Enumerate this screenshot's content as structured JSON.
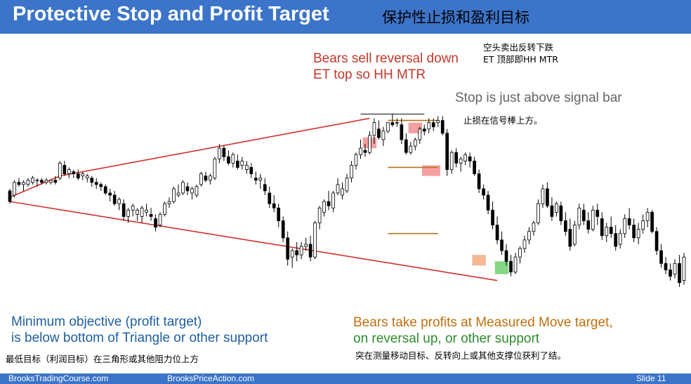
{
  "title": {
    "en": "Protective Stop and Profit Target",
    "cn": "保护性止损和盈利目标"
  },
  "annotations": {
    "bears_sell": {
      "line1": "Bears sell reversal down",
      "line2": "ET top so HH MTR"
    },
    "stop": "Stop is just above signal bar",
    "min_objective": {
      "line1": "Minimum objective (profit target)",
      "line2": "is below bottom of Triangle or other support"
    },
    "bears_profit": {
      "line1": "Bears take profits at Measured Move target,",
      "line2": "on reversal up, or other support"
    },
    "cn_top": {
      "line1": "空头卖出反转下跌",
      "line2": "ET 顶部即HH MTR"
    },
    "cn_stop": "止损在信号棒上方。",
    "cn_min": "最低目标（利润目标）在三角形或其他阻力位上方",
    "cn_profit": "突在测量移动目标、反转向上或其他支撑位获利了结。"
  },
  "footer": {
    "site1": "BrooksTradingCourse.com",
    "site2": "BrooksPriceAction.com",
    "slide": "Slide  11"
  },
  "colors": {
    "title_bar": "#3b74c9",
    "bear_bar": "#000000",
    "bull_bar": "#ffffff",
    "triangle_lines": "#d0312d",
    "level_lines": "#b8741a",
    "signal_highlight": "#f08080",
    "target_highlight": "#f0a070",
    "buy_highlight": "#5cc85c"
  },
  "chart_data": {
    "type": "candlestick",
    "title": "",
    "xlabel": "",
    "ylabel": "",
    "ylim": [
      0,
      100
    ],
    "candles": [
      [
        52,
        53,
        46,
        47
      ],
      [
        50,
        57,
        49,
        56
      ],
      [
        56,
        58,
        54,
        55
      ],
      [
        55,
        57,
        52,
        56
      ],
      [
        55,
        58,
        54,
        57
      ],
      [
        56,
        59,
        55,
        58
      ],
      [
        57,
        58,
        54,
        57
      ],
      [
        57,
        58,
        55,
        56
      ],
      [
        56,
        58,
        55,
        57
      ],
      [
        56,
        57,
        55,
        57
      ],
      [
        57,
        59,
        55,
        56
      ],
      [
        58,
        66,
        57,
        65
      ],
      [
        64,
        66,
        59,
        60
      ],
      [
        60,
        63,
        58,
        62
      ],
      [
        61,
        62,
        58,
        60
      ],
      [
        60,
        62,
        57,
        58
      ],
      [
        59,
        61,
        57,
        60
      ],
      [
        58,
        60,
        56,
        59
      ],
      [
        58,
        59,
        54,
        56
      ],
      [
        56,
        58,
        53,
        55
      ],
      [
        55,
        56,
        52,
        54
      ],
      [
        54,
        55,
        50,
        51
      ],
      [
        51,
        53,
        47,
        50
      ],
      [
        50,
        52,
        45,
        46
      ],
      [
        46,
        49,
        43,
        48
      ],
      [
        46,
        48,
        38,
        40
      ],
      [
        40,
        44,
        37,
        43
      ],
      [
        43,
        46,
        40,
        45
      ],
      [
        41,
        44,
        38,
        43
      ],
      [
        40,
        45,
        37,
        44
      ],
      [
        42,
        46,
        40,
        43
      ],
      [
        41,
        44,
        38,
        40
      ],
      [
        39,
        41,
        33,
        35
      ],
      [
        36,
        42,
        35,
        41
      ],
      [
        41,
        47,
        40,
        46
      ],
      [
        46,
        49,
        44,
        47
      ],
      [
        47,
        54,
        46,
        53
      ],
      [
        50,
        55,
        49,
        51
      ],
      [
        51,
        57,
        50,
        56
      ],
      [
        54,
        56,
        50,
        52
      ],
      [
        51,
        54,
        48,
        53
      ],
      [
        50,
        55,
        49,
        54
      ],
      [
        55,
        61,
        54,
        60
      ],
      [
        59,
        61,
        56,
        57
      ],
      [
        57,
        60,
        55,
        59
      ],
      [
        58,
        68,
        57,
        67
      ],
      [
        67,
        74,
        65,
        72
      ],
      [
        72,
        73,
        66,
        68
      ],
      [
        68,
        71,
        64,
        65
      ],
      [
        65,
        70,
        63,
        69
      ],
      [
        66,
        69,
        62,
        63
      ],
      [
        64,
        68,
        62,
        66
      ],
      [
        62,
        66,
        60,
        64
      ],
      [
        63,
        65,
        58,
        60
      ],
      [
        58,
        61,
        55,
        57
      ],
      [
        57,
        60,
        53,
        58
      ],
      [
        55,
        58,
        50,
        52
      ],
      [
        51,
        54,
        44,
        46
      ],
      [
        46,
        50,
        42,
        44
      ],
      [
        44,
        46,
        35,
        38
      ],
      [
        38,
        40,
        28,
        30
      ],
      [
        30,
        33,
        17,
        20
      ],
      [
        21,
        25,
        16,
        24
      ],
      [
        24,
        28,
        19,
        22
      ],
      [
        22,
        28,
        20,
        26
      ],
      [
        26,
        30,
        24,
        27
      ],
      [
        27,
        31,
        19,
        21
      ],
      [
        21,
        38,
        20,
        37
      ],
      [
        37,
        45,
        34,
        44
      ],
      [
        42,
        48,
        40,
        47
      ],
      [
        47,
        52,
        43,
        45
      ],
      [
        44,
        52,
        42,
        51
      ],
      [
        51,
        58,
        50,
        55
      ],
      [
        50,
        56,
        48,
        53
      ],
      [
        52,
        60,
        51,
        58
      ],
      [
        58,
        66,
        56,
        64
      ],
      [
        64,
        70,
        62,
        69
      ],
      [
        69,
        76,
        67,
        72
      ],
      [
        71,
        74,
        68,
        70
      ],
      [
        70,
        80,
        69,
        78
      ],
      [
        78,
        86,
        74,
        84
      ],
      [
        81,
        85,
        76,
        77
      ],
      [
        76,
        82,
        73,
        80
      ],
      [
        80,
        84,
        79,
        84
      ],
      [
        84,
        88,
        82,
        83
      ],
      [
        84,
        86,
        82,
        84
      ],
      [
        83,
        86,
        74,
        76
      ],
      [
        76,
        79,
        69,
        70
      ],
      [
        70,
        75,
        69,
        73
      ],
      [
        73,
        77,
        71,
        76
      ],
      [
        76,
        82,
        74,
        81
      ],
      [
        81,
        83,
        78,
        80
      ],
      [
        81,
        86,
        79,
        84
      ],
      [
        84,
        86,
        80,
        82
      ],
      [
        84,
        87,
        82,
        85
      ],
      [
        85,
        87,
        78,
        79
      ],
      [
        79,
        81,
        59,
        62
      ],
      [
        62,
        71,
        60,
        70
      ],
      [
        70,
        72,
        63,
        65
      ],
      [
        65,
        68,
        61,
        67
      ],
      [
        66,
        70,
        64,
        69
      ],
      [
        68,
        70,
        63,
        66
      ],
      [
        66,
        68,
        59,
        60
      ],
      [
        60,
        62,
        51,
        53
      ],
      [
        53,
        55,
        48,
        50
      ],
      [
        50,
        52,
        41,
        43
      ],
      [
        43,
        47,
        34,
        36
      ],
      [
        36,
        40,
        27,
        29
      ],
      [
        29,
        33,
        22,
        24
      ],
      [
        24,
        27,
        17,
        19
      ],
      [
        19,
        22,
        12,
        14
      ],
      [
        14,
        23,
        13,
        21
      ],
      [
        21,
        26,
        18,
        25
      ],
      [
        25,
        31,
        23,
        29
      ],
      [
        29,
        35,
        27,
        33
      ],
      [
        33,
        38,
        31,
        37
      ],
      [
        37,
        48,
        36,
        46
      ],
      [
        46,
        55,
        44,
        53
      ],
      [
        53,
        56,
        44,
        45
      ],
      [
        45,
        49,
        38,
        40
      ],
      [
        42,
        47,
        40,
        46
      ],
      [
        45,
        47,
        36,
        38
      ],
      [
        38,
        42,
        31,
        33
      ],
      [
        34,
        39,
        24,
        26
      ],
      [
        27,
        38,
        26,
        36
      ],
      [
        36,
        46,
        34,
        44
      ],
      [
        43,
        46,
        36,
        38
      ],
      [
        38,
        42,
        32,
        34
      ],
      [
        34,
        45,
        33,
        43
      ],
      [
        43,
        46,
        36,
        40
      ],
      [
        39,
        42,
        29,
        31
      ],
      [
        31,
        37,
        28,
        35
      ],
      [
        35,
        40,
        30,
        32
      ],
      [
        32,
        36,
        24,
        26
      ],
      [
        27,
        34,
        25,
        32
      ],
      [
        32,
        41,
        30,
        39
      ],
      [
        39,
        44,
        34,
        36
      ],
      [
        36,
        39,
        28,
        30
      ],
      [
        30,
        37,
        27,
        34
      ],
      [
        34,
        41,
        32,
        38
      ],
      [
        38,
        44,
        35,
        42
      ],
      [
        42,
        43,
        32,
        33
      ],
      [
        33,
        35,
        22,
        24
      ],
      [
        24,
        27,
        16,
        18
      ],
      [
        18,
        21,
        13,
        15
      ],
      [
        15,
        18,
        10,
        12
      ],
      [
        13,
        20,
        11,
        18
      ],
      [
        18,
        22,
        7,
        9
      ],
      [
        10,
        23,
        8,
        21
      ]
    ],
    "triangle_upper": [
      [
        0,
        49
      ],
      [
        11,
        59
      ],
      [
        79,
        86
      ]
    ],
    "triangle_lower": [
      [
        0,
        47
      ],
      [
        107,
        10
      ]
    ],
    "signal_bar_high": 88,
    "measured_move_levels": [
      85,
      63,
      32
    ]
  }
}
